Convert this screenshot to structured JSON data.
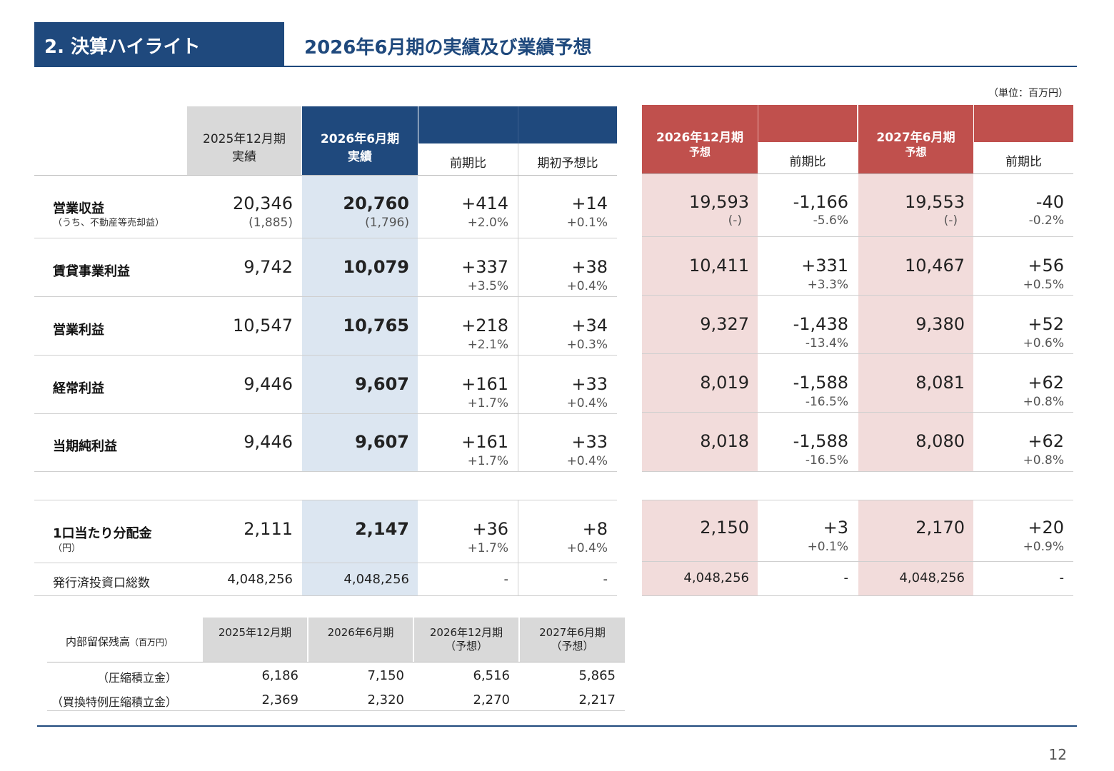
{
  "header": {
    "section": "2. 決算ハイライト",
    "title": "2026年6月期の実績及び業績予想",
    "unit": "（単位：百万円）"
  },
  "columns": {
    "prev_period": "2025年12月期",
    "prev_type": "実績",
    "cur_period": "2026年6月期",
    "cur_type": "実績",
    "yoy": "前期比",
    "vs_plan": "期初予想比",
    "f1_period": "2026年12月期",
    "f1_type": "予想",
    "f1_yoy": "前期比",
    "f2_period": "2027年6月期",
    "f2_type": "予想",
    "f2_yoy": "前期比"
  },
  "rows": [
    {
      "label": "営業収益",
      "sub": "（うち、不動産等売却益）",
      "prev": "20,346",
      "prev_sub": "(1,885)",
      "cur": "20,760",
      "cur_sub": "(1,796)",
      "yoy": "+414",
      "yoy_pct": "+2.0%",
      "plan": "+14",
      "plan_pct": "+0.1%",
      "f1": "19,593",
      "f1_sub": "(-)",
      "f1_yoy": "-1,166",
      "f1_pct": "-5.6%",
      "f2": "19,553",
      "f2_sub": "(-)",
      "f2_yoy": "-40",
      "f2_pct": "-0.2%"
    },
    {
      "label": "賃貸事業利益",
      "prev": "9,742",
      "cur": "10,079",
      "yoy": "+337",
      "yoy_pct": "+3.5%",
      "plan": "+38",
      "plan_pct": "+0.4%",
      "f1": "10,411",
      "f1_yoy": "+331",
      "f1_pct": "+3.3%",
      "f2": "10,467",
      "f2_yoy": "+56",
      "f2_pct": "+0.5%"
    },
    {
      "label": "営業利益",
      "prev": "10,547",
      "cur": "10,765",
      "yoy": "+218",
      "yoy_pct": "+2.1%",
      "plan": "+34",
      "plan_pct": "+0.3%",
      "f1": "9,327",
      "f1_yoy": "-1,438",
      "f1_pct": "-13.4%",
      "f2": "9,380",
      "f2_yoy": "+52",
      "f2_pct": "+0.6%"
    },
    {
      "label": "経常利益",
      "prev": "9,446",
      "cur": "9,607",
      "yoy": "+161",
      "yoy_pct": "+1.7%",
      "plan": "+33",
      "plan_pct": "+0.4%",
      "f1": "8,019",
      "f1_yoy": "-1,588",
      "f1_pct": "-16.5%",
      "f2": "8,081",
      "f2_yoy": "+62",
      "f2_pct": "+0.8%"
    },
    {
      "label": "当期純利益",
      "prev": "9,446",
      "cur": "9,607",
      "yoy": "+161",
      "yoy_pct": "+1.7%",
      "plan": "+33",
      "plan_pct": "+0.4%",
      "f1": "8,018",
      "f1_yoy": "-1,588",
      "f1_pct": "-16.5%",
      "f2": "8,080",
      "f2_yoy": "+62",
      "f2_pct": "+0.8%"
    }
  ],
  "dist": {
    "label": "1口当たり分配金",
    "sub": "（円）",
    "prev": "2,111",
    "cur": "2,147",
    "yoy": "+36",
    "yoy_pct": "+1.7%",
    "plan": "+8",
    "plan_pct": "+0.4%",
    "f1": "2,150",
    "f1_yoy": "+3",
    "f1_pct": "+0.1%",
    "f2": "2,170",
    "f2_yoy": "+20",
    "f2_pct": "+0.9%"
  },
  "units": {
    "label": "発行済投資口総数",
    "prev": "4,048,256",
    "cur": "4,048,256",
    "yoy": "-",
    "plan": "-",
    "f1": "4,048,256",
    "f1_yoy": "-",
    "f2": "4,048,256",
    "f2_yoy": "-"
  },
  "retained": {
    "title": "内部留保残高",
    "title_unit": "（百万円）",
    "headers": [
      {
        "l1": "2025年12月期",
        "l2": ""
      },
      {
        "l1": "2026年6月期",
        "l2": ""
      },
      {
        "l1": "2026年12月期",
        "l2": "（予想）"
      },
      {
        "l1": "2027年6月期",
        "l2": "（予想）"
      }
    ],
    "rows": [
      {
        "label": "（圧縮積立金）",
        "values": [
          "6,186",
          "7,150",
          "6,516",
          "5,865"
        ]
      },
      {
        "label": "（買換特例圧縮積立金）",
        "values": [
          "2,369",
          "2,320",
          "2,270",
          "2,217"
        ]
      }
    ]
  },
  "page_number": "12",
  "colors": {
    "navy": "#1f497d",
    "red": "#c0504d",
    "pink": "#f2dcdb",
    "lightblue": "#dce6f1",
    "gray": "#d9d9d9"
  }
}
